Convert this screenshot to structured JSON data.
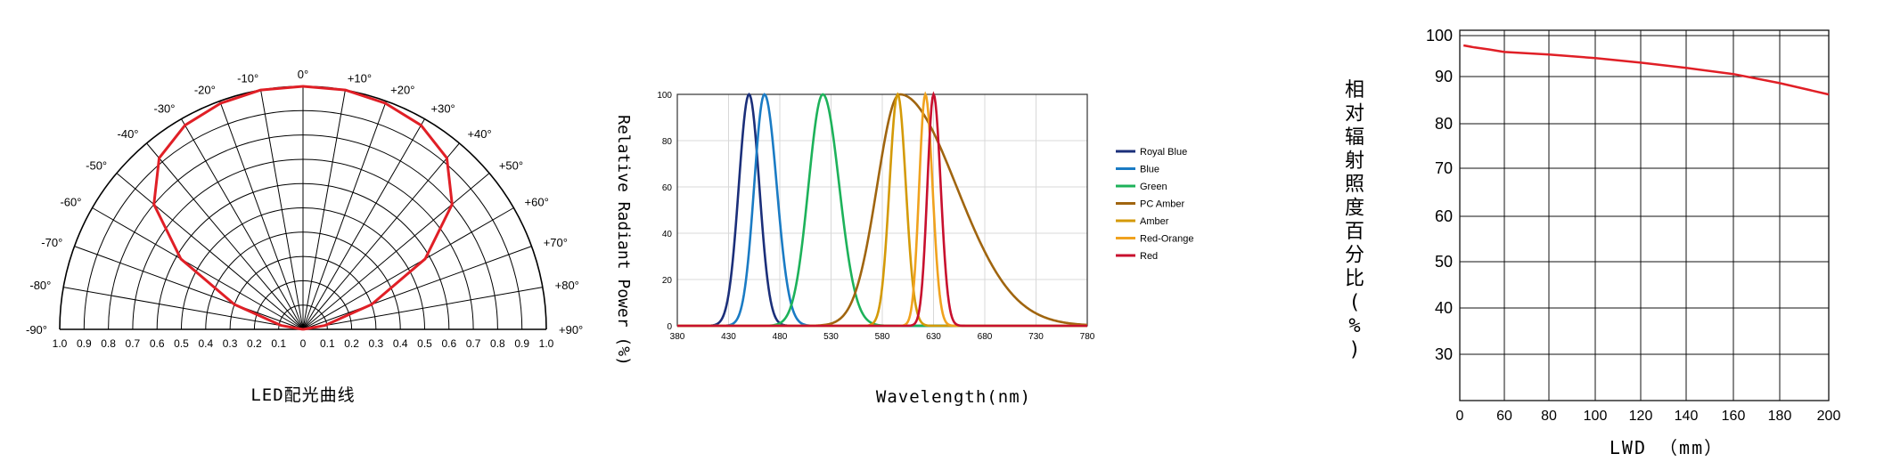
{
  "colors": {
    "red": "#e01f26",
    "grid": "#000000",
    "royal_blue": "#1b2f7a",
    "blue": "#1a7bc4",
    "green": "#1db25a",
    "pc_amber": "#a0650f",
    "amber": "#d49a08",
    "red_orange": "#f0a21e",
    "red_series": "#c8102e"
  },
  "chart_data": [
    {
      "type": "polar",
      "title": "LED配光曲线",
      "angle_labels": [
        "-90°",
        "-80°",
        "-70°",
        "-60°",
        "-50°",
        "-40°",
        "-30°",
        "-20°",
        "-10°",
        "0°",
        "+10°",
        "+20°",
        "+30°",
        "+40°",
        "+50°",
        "+60°",
        "+70°",
        "+80°",
        "+90°"
      ],
      "radial_labels": [
        "1.0",
        "0.9",
        "0.8",
        "0.7",
        "0.6",
        "0.5",
        "0.4",
        "0.3",
        "0.2",
        "0.1",
        "0",
        "0.1",
        "0.2",
        "0.3",
        "0.4",
        "0.5",
        "0.6",
        "0.7",
        "0.8",
        "0.9",
        "1.0"
      ],
      "series": [
        {
          "angles": [
            -90,
            -80,
            -70,
            -60,
            -50,
            -40,
            -30,
            -20,
            -10,
            0,
            10,
            20,
            30,
            40,
            50,
            60,
            70,
            80,
            90
          ],
          "values": [
            0.0,
            0.09,
            0.3,
            0.58,
            0.8,
            0.92,
            0.97,
            0.99,
            1.0,
            1.0,
            1.0,
            0.99,
            0.97,
            0.92,
            0.8,
            0.58,
            0.3,
            0.09,
            0.0
          ]
        }
      ]
    },
    {
      "type": "line",
      "xlabel": "Wavelength(nm)",
      "ylabel": "Relative Radiant Power (%)",
      "xlim": [
        380,
        780
      ],
      "ylim": [
        0,
        100
      ],
      "xticks": [
        "380",
        "430",
        "480",
        "530",
        "580",
        "630",
        "680",
        "730",
        "780"
      ],
      "yticks": [
        "0",
        "20",
        "40",
        "60",
        "80",
        "100"
      ],
      "series": [
        {
          "name": "Royal Blue",
          "peak": 450,
          "width_left": 10,
          "width_right": 10
        },
        {
          "name": "Blue",
          "peak": 465,
          "width_left": 10,
          "width_right": 12
        },
        {
          "name": "Green",
          "peak": 522,
          "width_left": 14,
          "width_right": 16
        },
        {
          "name": "PC Amber",
          "peak": 597,
          "width_left": 22,
          "width_right": 55
        },
        {
          "name": "Amber",
          "peak": 595,
          "width_left": 8,
          "width_right": 8
        },
        {
          "name": "Red-Orange",
          "peak": 622,
          "width_left": 6,
          "width_right": 7
        },
        {
          "name": "Red",
          "peak": 630,
          "width_left": 6,
          "width_right": 7
        }
      ]
    },
    {
      "type": "line",
      "xlabel": "LWD （mm）",
      "ylabel": "相对辐射照度百分比(%)",
      "xlim": [
        0,
        200
      ],
      "xticks": [
        "0",
        "60",
        "80",
        "100",
        "120",
        "140",
        "160",
        "180",
        "200"
      ],
      "yticks": [
        "100",
        "90",
        "80",
        "70",
        "60",
        "50",
        "40",
        "30"
      ],
      "series": [
        {
          "x": [
            5,
            20,
            40,
            60,
            80,
            100,
            120,
            140,
            160,
            180,
            200
          ],
          "y": [
            97.6,
            97.1,
            96.6,
            96.0,
            95.4,
            94.5,
            93.4,
            92.1,
            90.6,
            88.6,
            86.2
          ]
        }
      ]
    }
  ]
}
